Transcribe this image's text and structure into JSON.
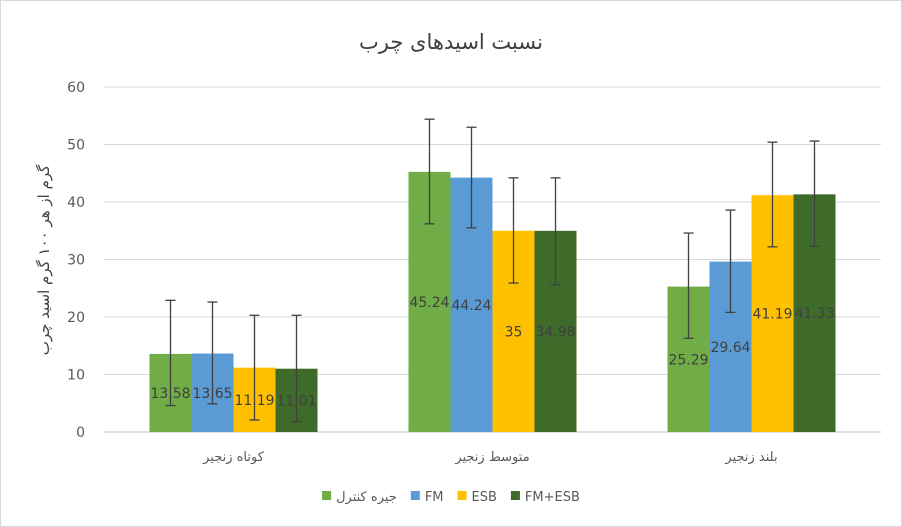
{
  "chart_data": {
    "type": "bar",
    "title": "نسبت اسیدهای چرب",
    "xlabel": "",
    "ylabel": "گرم از هر ۱۰۰ گرم اسید چرب",
    "ylim": [
      0,
      60
    ],
    "yticks": [
      0,
      10,
      20,
      30,
      40,
      50,
      60
    ],
    "grid": true,
    "legend_position": "bottom",
    "categories": [
      "کوتاه زنجیر",
      "متوسط زنجیر",
      "بلند زنجیر"
    ],
    "series": [
      {
        "name": "جیره کنترل",
        "color": "#70ad47",
        "values": [
          13.58,
          45.24,
          25.29
        ],
        "labels": [
          "13.58",
          "45.24",
          "25.29"
        ],
        "error_low": [
          4.6,
          36.2,
          16.3
        ],
        "error_high": [
          22.9,
          54.4,
          34.6
        ]
      },
      {
        "name": "FM",
        "color": "#5b9bd5",
        "values": [
          13.65,
          44.24,
          29.64
        ],
        "labels": [
          "13.65",
          "44.24",
          "29.64"
        ],
        "error_low": [
          4.9,
          35.5,
          20.8
        ],
        "error_high": [
          22.6,
          53.0,
          38.6
        ]
      },
      {
        "name": "ESB",
        "color": "#ffc000",
        "values": [
          11.19,
          35,
          41.19
        ],
        "labels": [
          "11.19",
          "35",
          "41.19"
        ],
        "error_low": [
          2.1,
          25.9,
          32.2
        ],
        "error_high": [
          20.3,
          44.2,
          50.4
        ]
      },
      {
        "name": "FM+ESB",
        "color": "#3e6a2a",
        "values": [
          11.01,
          34.98,
          41.33
        ],
        "labels": [
          "11.01",
          "34.98",
          "41.33"
        ],
        "error_low": [
          1.8,
          25.6,
          32.3
        ],
        "error_high": [
          20.3,
          44.2,
          50.6
        ]
      }
    ]
  }
}
